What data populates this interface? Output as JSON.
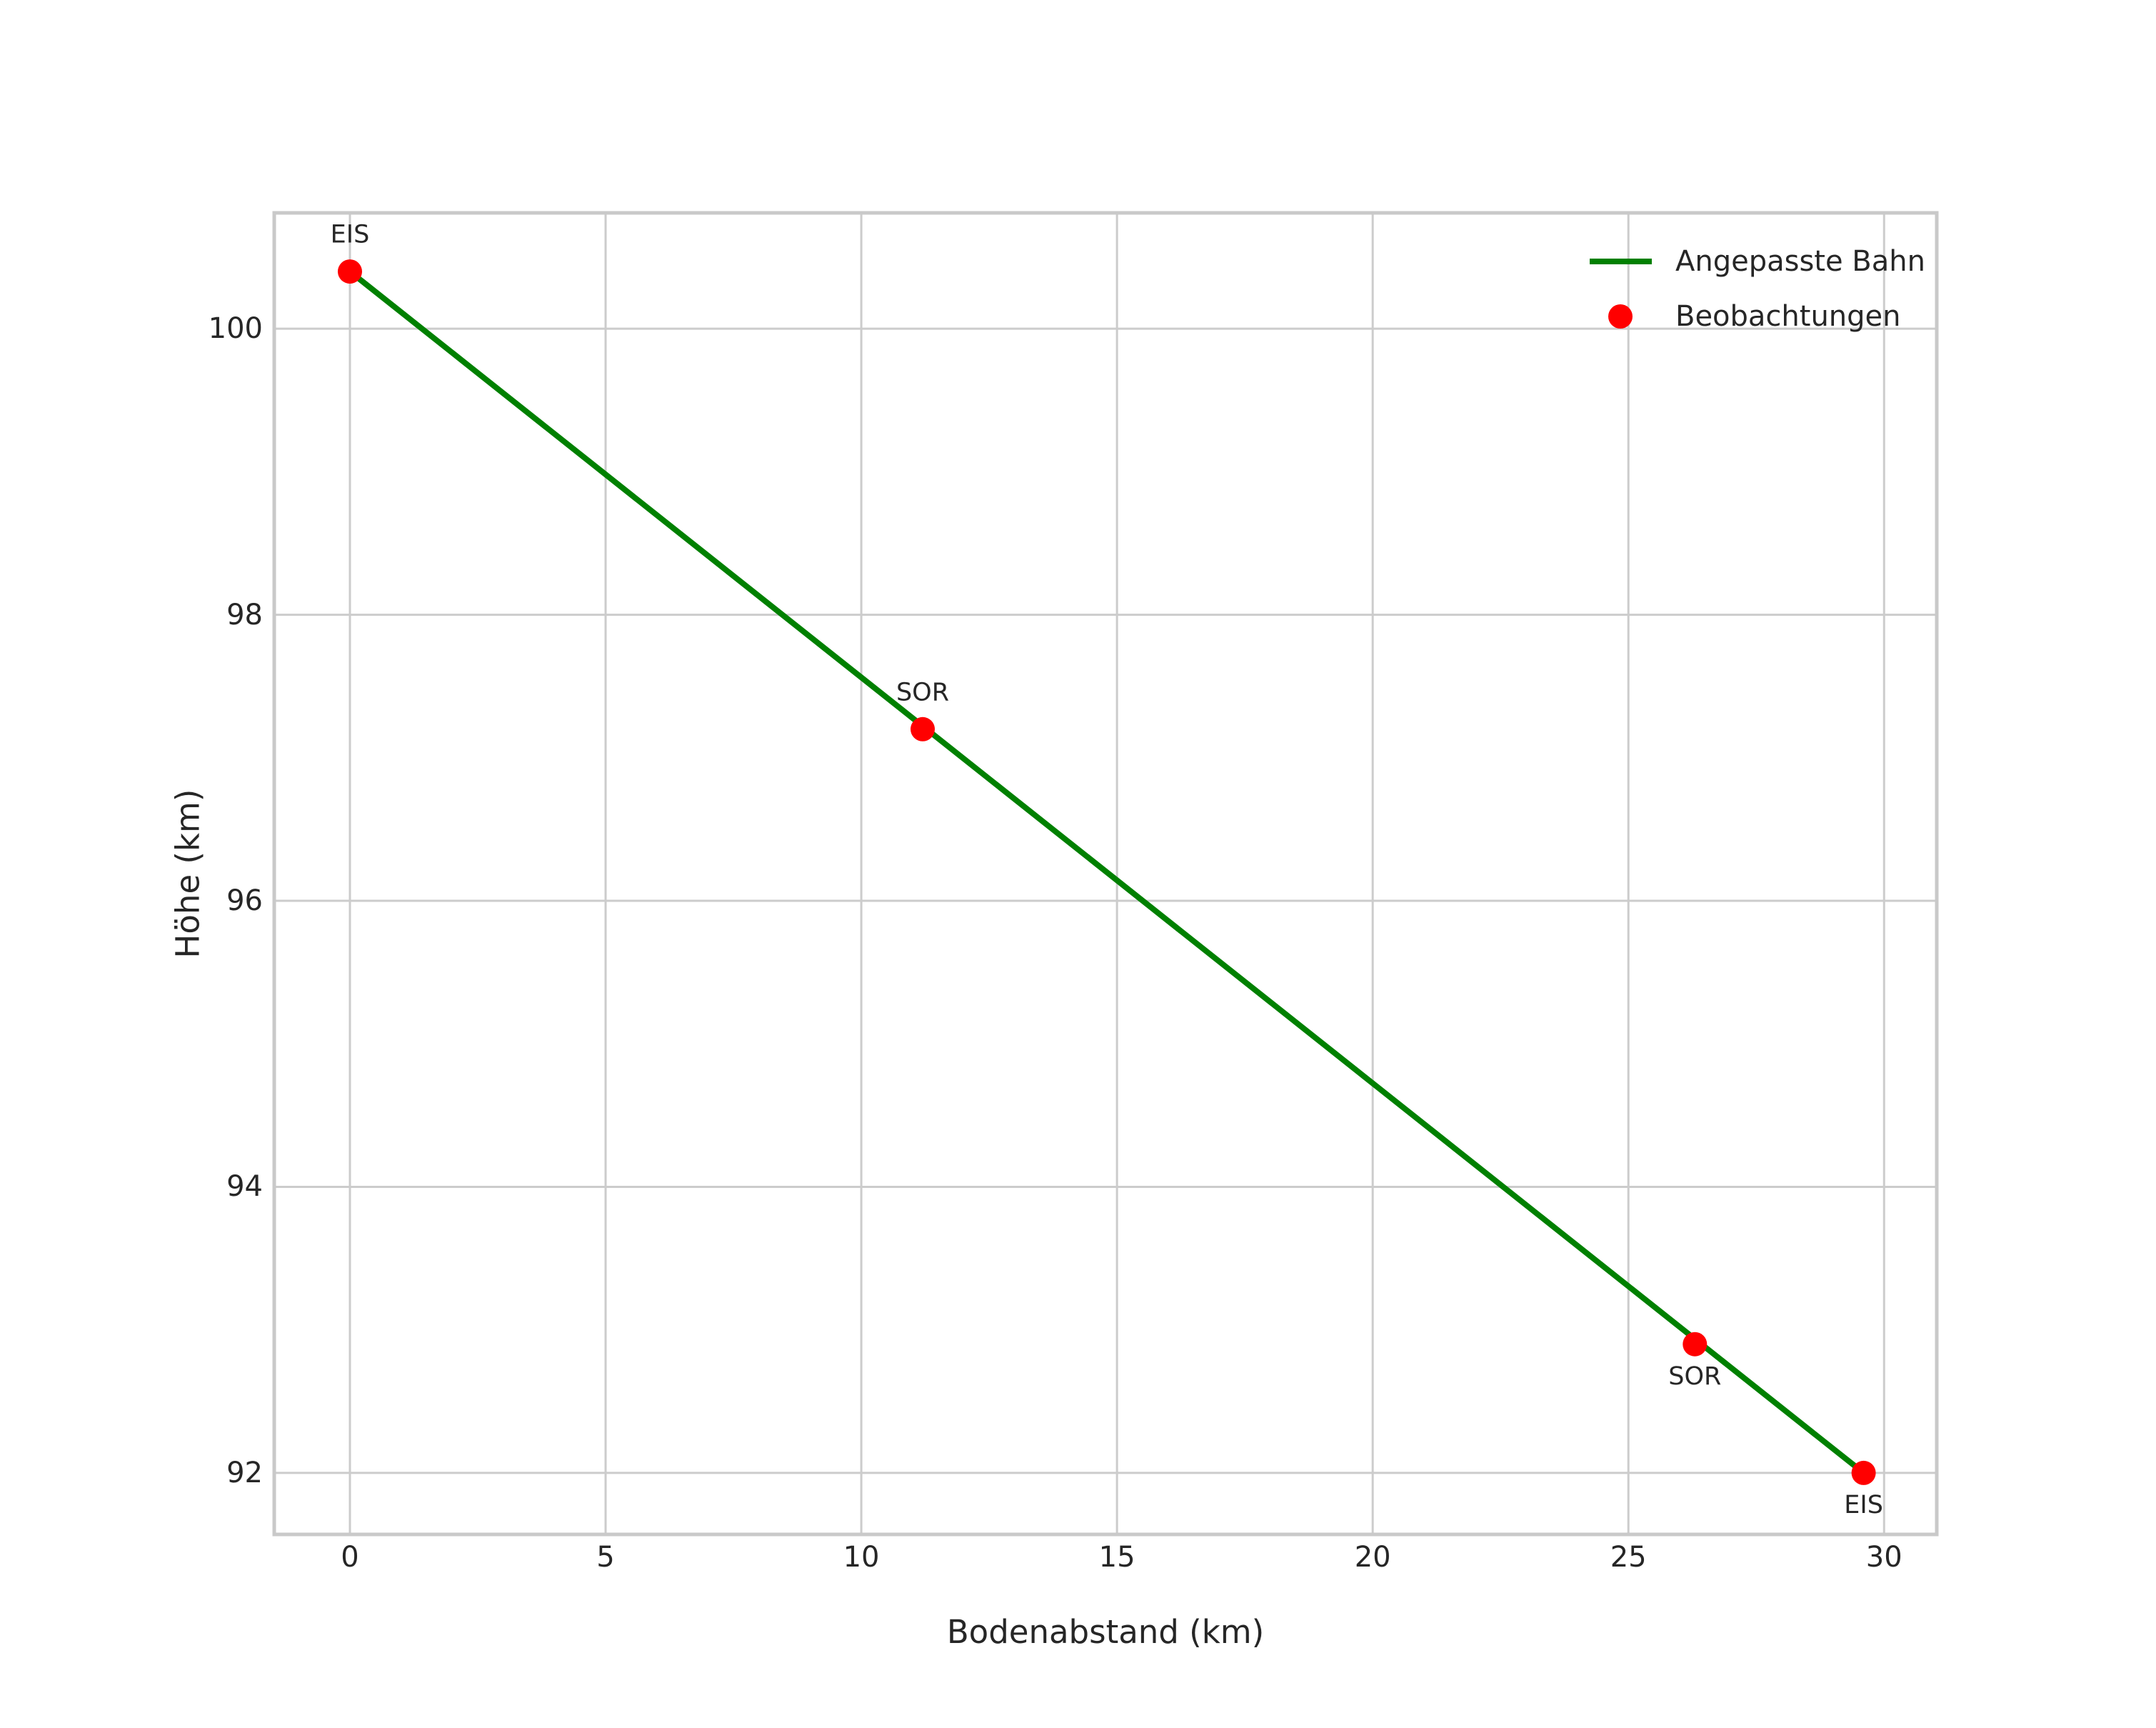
{
  "chart_data": {
    "type": "scatter",
    "title": "",
    "xlabel": "Bodenabstand (km)",
    "ylabel": "Höhe (km)",
    "xlim": [
      -1.48,
      31.03
    ],
    "ylim": [
      91.57,
      100.81
    ],
    "xticks": [
      0,
      5,
      10,
      15,
      20,
      25,
      30
    ],
    "yticks": [
      92,
      94,
      96,
      98,
      100
    ],
    "grid": true,
    "colors": {
      "fitted_line": "#008000",
      "observations": "#ff0000",
      "gridline": "#cccccc",
      "axes_frame": "#c9c9c9",
      "text": "#262626"
    },
    "legend": {
      "position": "upper right",
      "frame": false,
      "items": [
        {
          "label": "Angepasste Bahn",
          "swatch": "line",
          "color": "#008000"
        },
        {
          "label": "Beobachtungen",
          "swatch": "marker",
          "color": "#ff0000"
        }
      ]
    },
    "series": [
      {
        "name": "Angepasste Bahn",
        "type": "line",
        "color": "#008000",
        "points": [
          [
            0,
            100.4
          ],
          [
            29.6,
            92.0
          ]
        ]
      },
      {
        "name": "Beobachtungen",
        "type": "scatter",
        "color": "#ff0000",
        "points": [
          {
            "x": 0,
            "y": 100.4,
            "label": "EIS",
            "label_placement": "above"
          },
          {
            "x": 11.2,
            "y": 97.2,
            "label": "SOR",
            "label_placement": "above"
          },
          {
            "x": 26.3,
            "y": 92.9,
            "label": "SOR",
            "label_placement": "below"
          },
          {
            "x": 29.6,
            "y": 92.0,
            "label": "EIS",
            "label_placement": "below"
          }
        ]
      }
    ]
  }
}
